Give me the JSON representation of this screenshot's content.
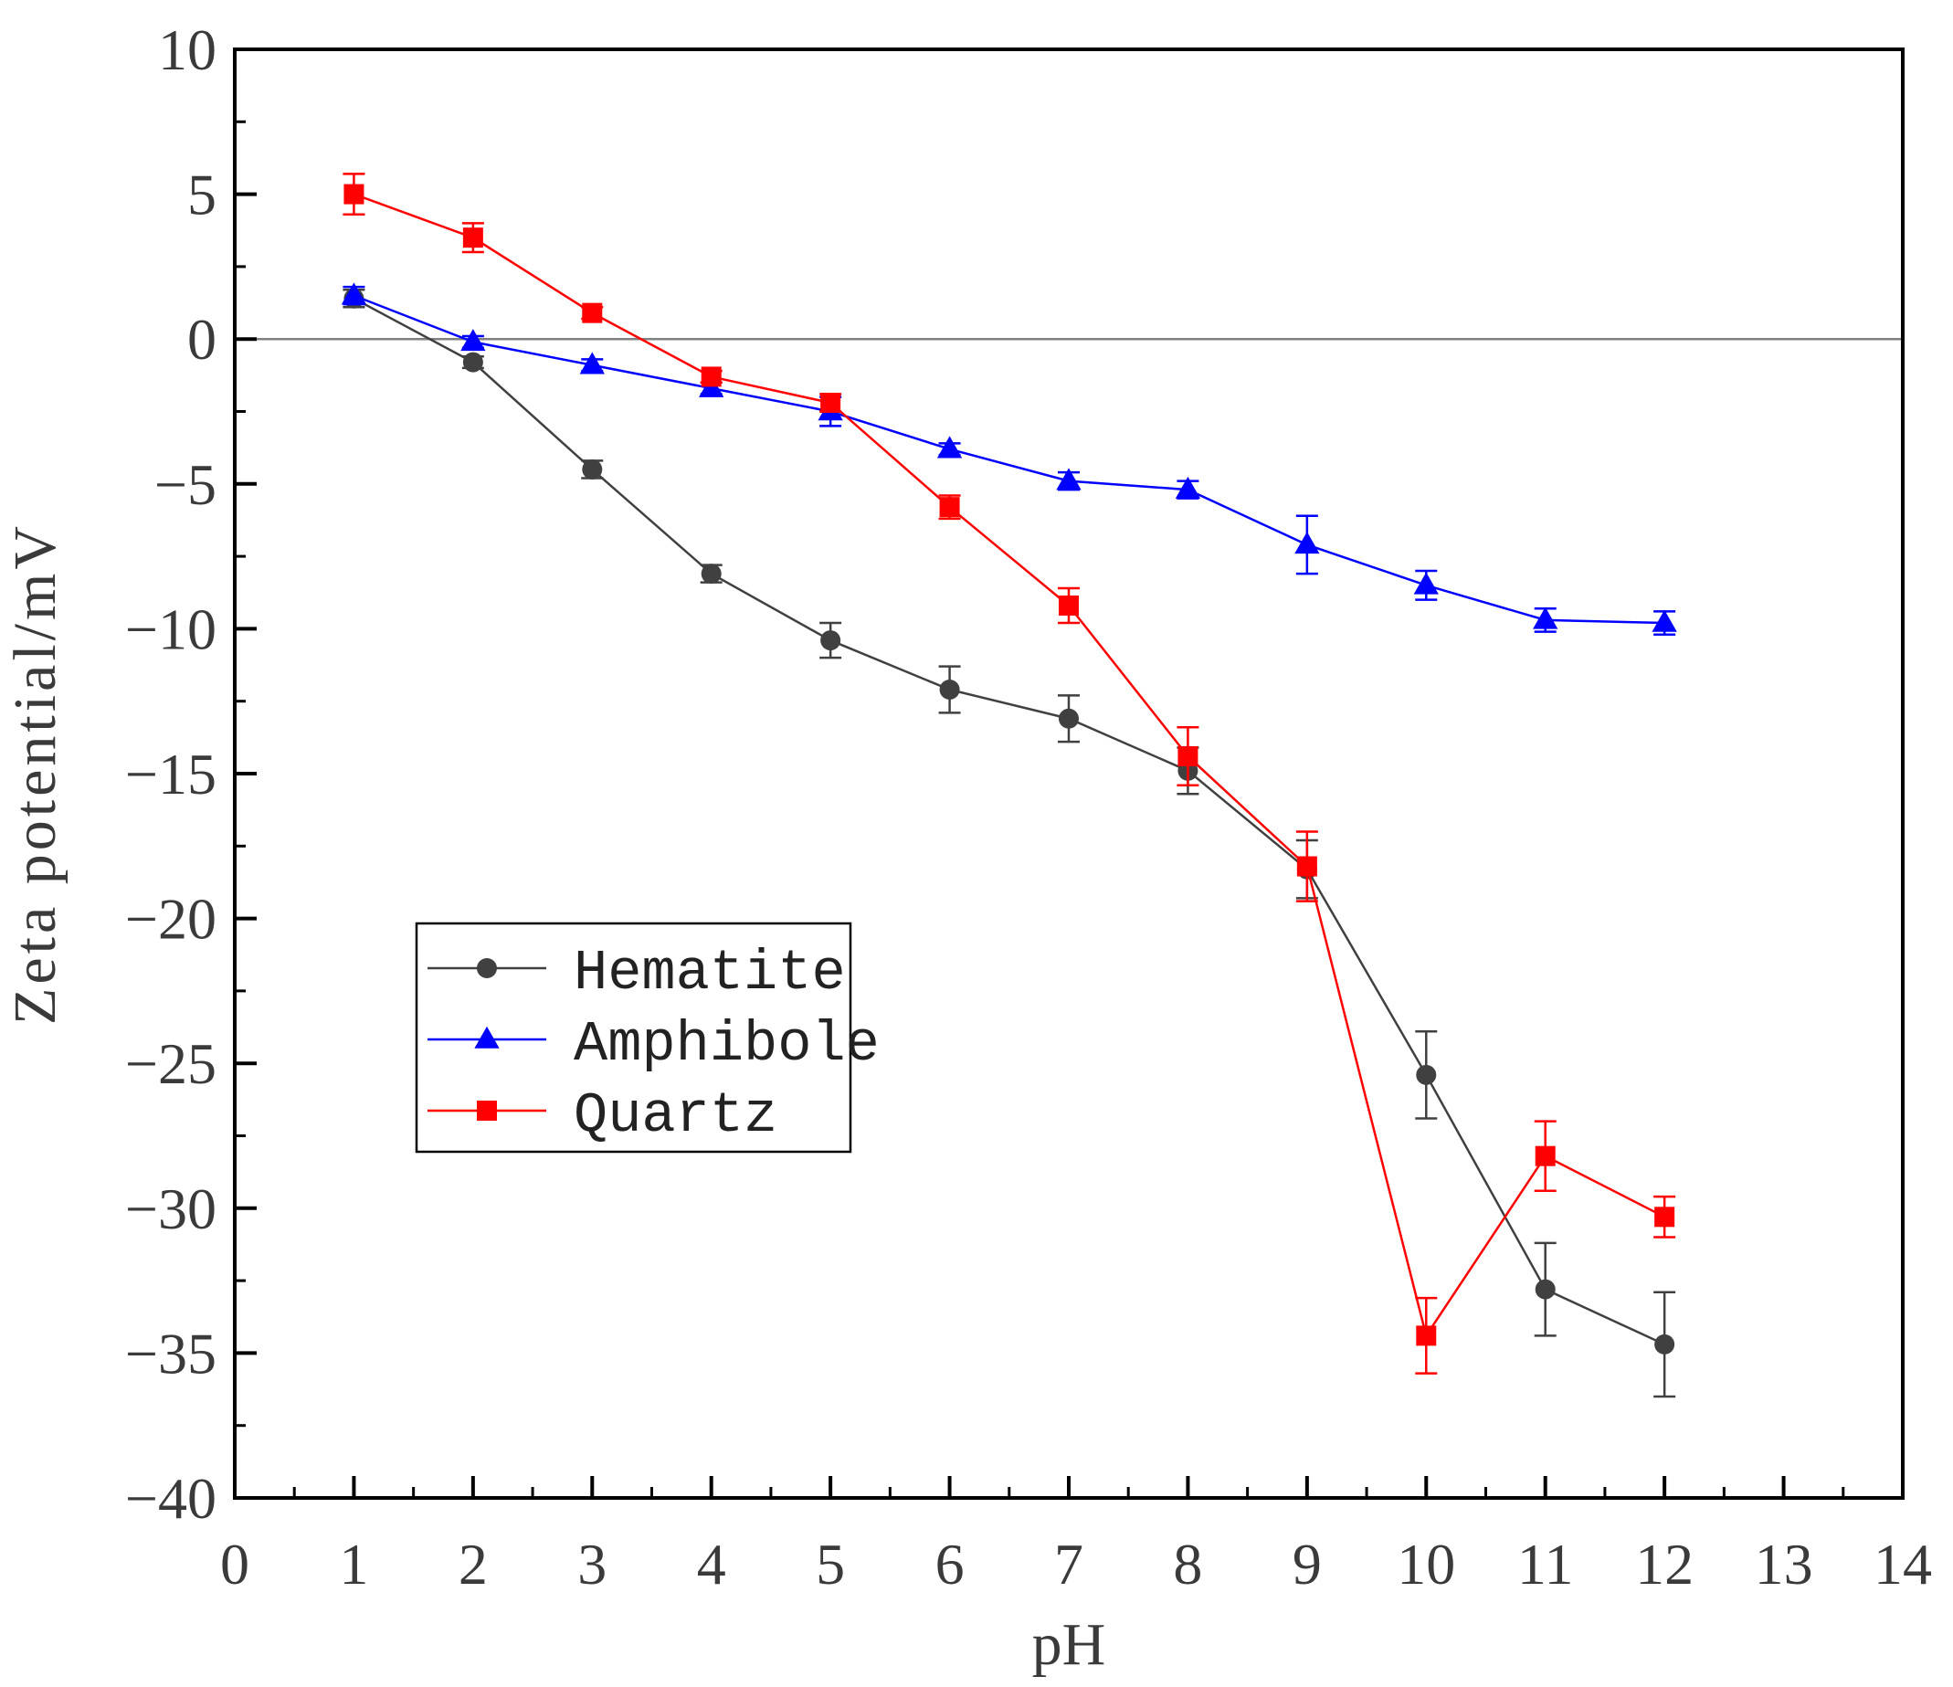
{
  "chart_data": {
    "type": "line",
    "title": "",
    "xlabel": "pH",
    "ylabel": "Zeta potential/mV",
    "xlim": [
      0,
      14
    ],
    "ylim": [
      -40,
      10
    ],
    "xticks": [
      0,
      1,
      2,
      3,
      4,
      5,
      6,
      7,
      8,
      9,
      10,
      11,
      12,
      13,
      14
    ],
    "yticks": [
      10,
      5,
      0,
      -5,
      -10,
      -15,
      -20,
      -25,
      -30,
      -35,
      -40
    ],
    "grid": false,
    "reference_line_y": 0,
    "legend_position": "lower-left",
    "x": [
      1,
      2,
      3,
      4,
      5,
      6,
      7,
      8,
      9,
      10,
      11,
      12
    ],
    "series": [
      {
        "name": "Hematite",
        "color": "#404040",
        "marker": "circle",
        "values": [
          1.4,
          -0.8,
          -4.5,
          -8.1,
          -10.4,
          -12.1,
          -13.1,
          -14.9,
          -18.3,
          -25.4,
          -32.8,
          -34.7
        ],
        "errors": [
          0.3,
          0.2,
          0.3,
          0.3,
          0.6,
          0.8,
          0.8,
          0.8,
          1.0,
          1.5,
          1.6,
          1.8
        ]
      },
      {
        "name": "Amphibole",
        "color": "#0000ff",
        "marker": "triangle",
        "values": [
          1.5,
          -0.1,
          -0.9,
          -1.7,
          -2.5,
          -3.8,
          -4.9,
          -5.2,
          -7.1,
          -8.5,
          -9.7,
          -9.8
        ],
        "errors": [
          0.3,
          0.2,
          0.2,
          0.2,
          0.5,
          0.2,
          0.3,
          0.3,
          1.0,
          0.5,
          0.4,
          0.4
        ]
      },
      {
        "name": "Quartz",
        "color": "#ff0000",
        "marker": "square",
        "values": [
          5.0,
          3.5,
          0.9,
          -1.3,
          -2.2,
          -5.8,
          -9.2,
          -14.4,
          -18.2,
          -34.4,
          -28.2,
          -30.3
        ],
        "errors": [
          0.7,
          0.5,
          0.2,
          0.2,
          0.3,
          0.4,
          0.6,
          1.0,
          1.2,
          1.3,
          1.2,
          0.7
        ]
      }
    ]
  }
}
